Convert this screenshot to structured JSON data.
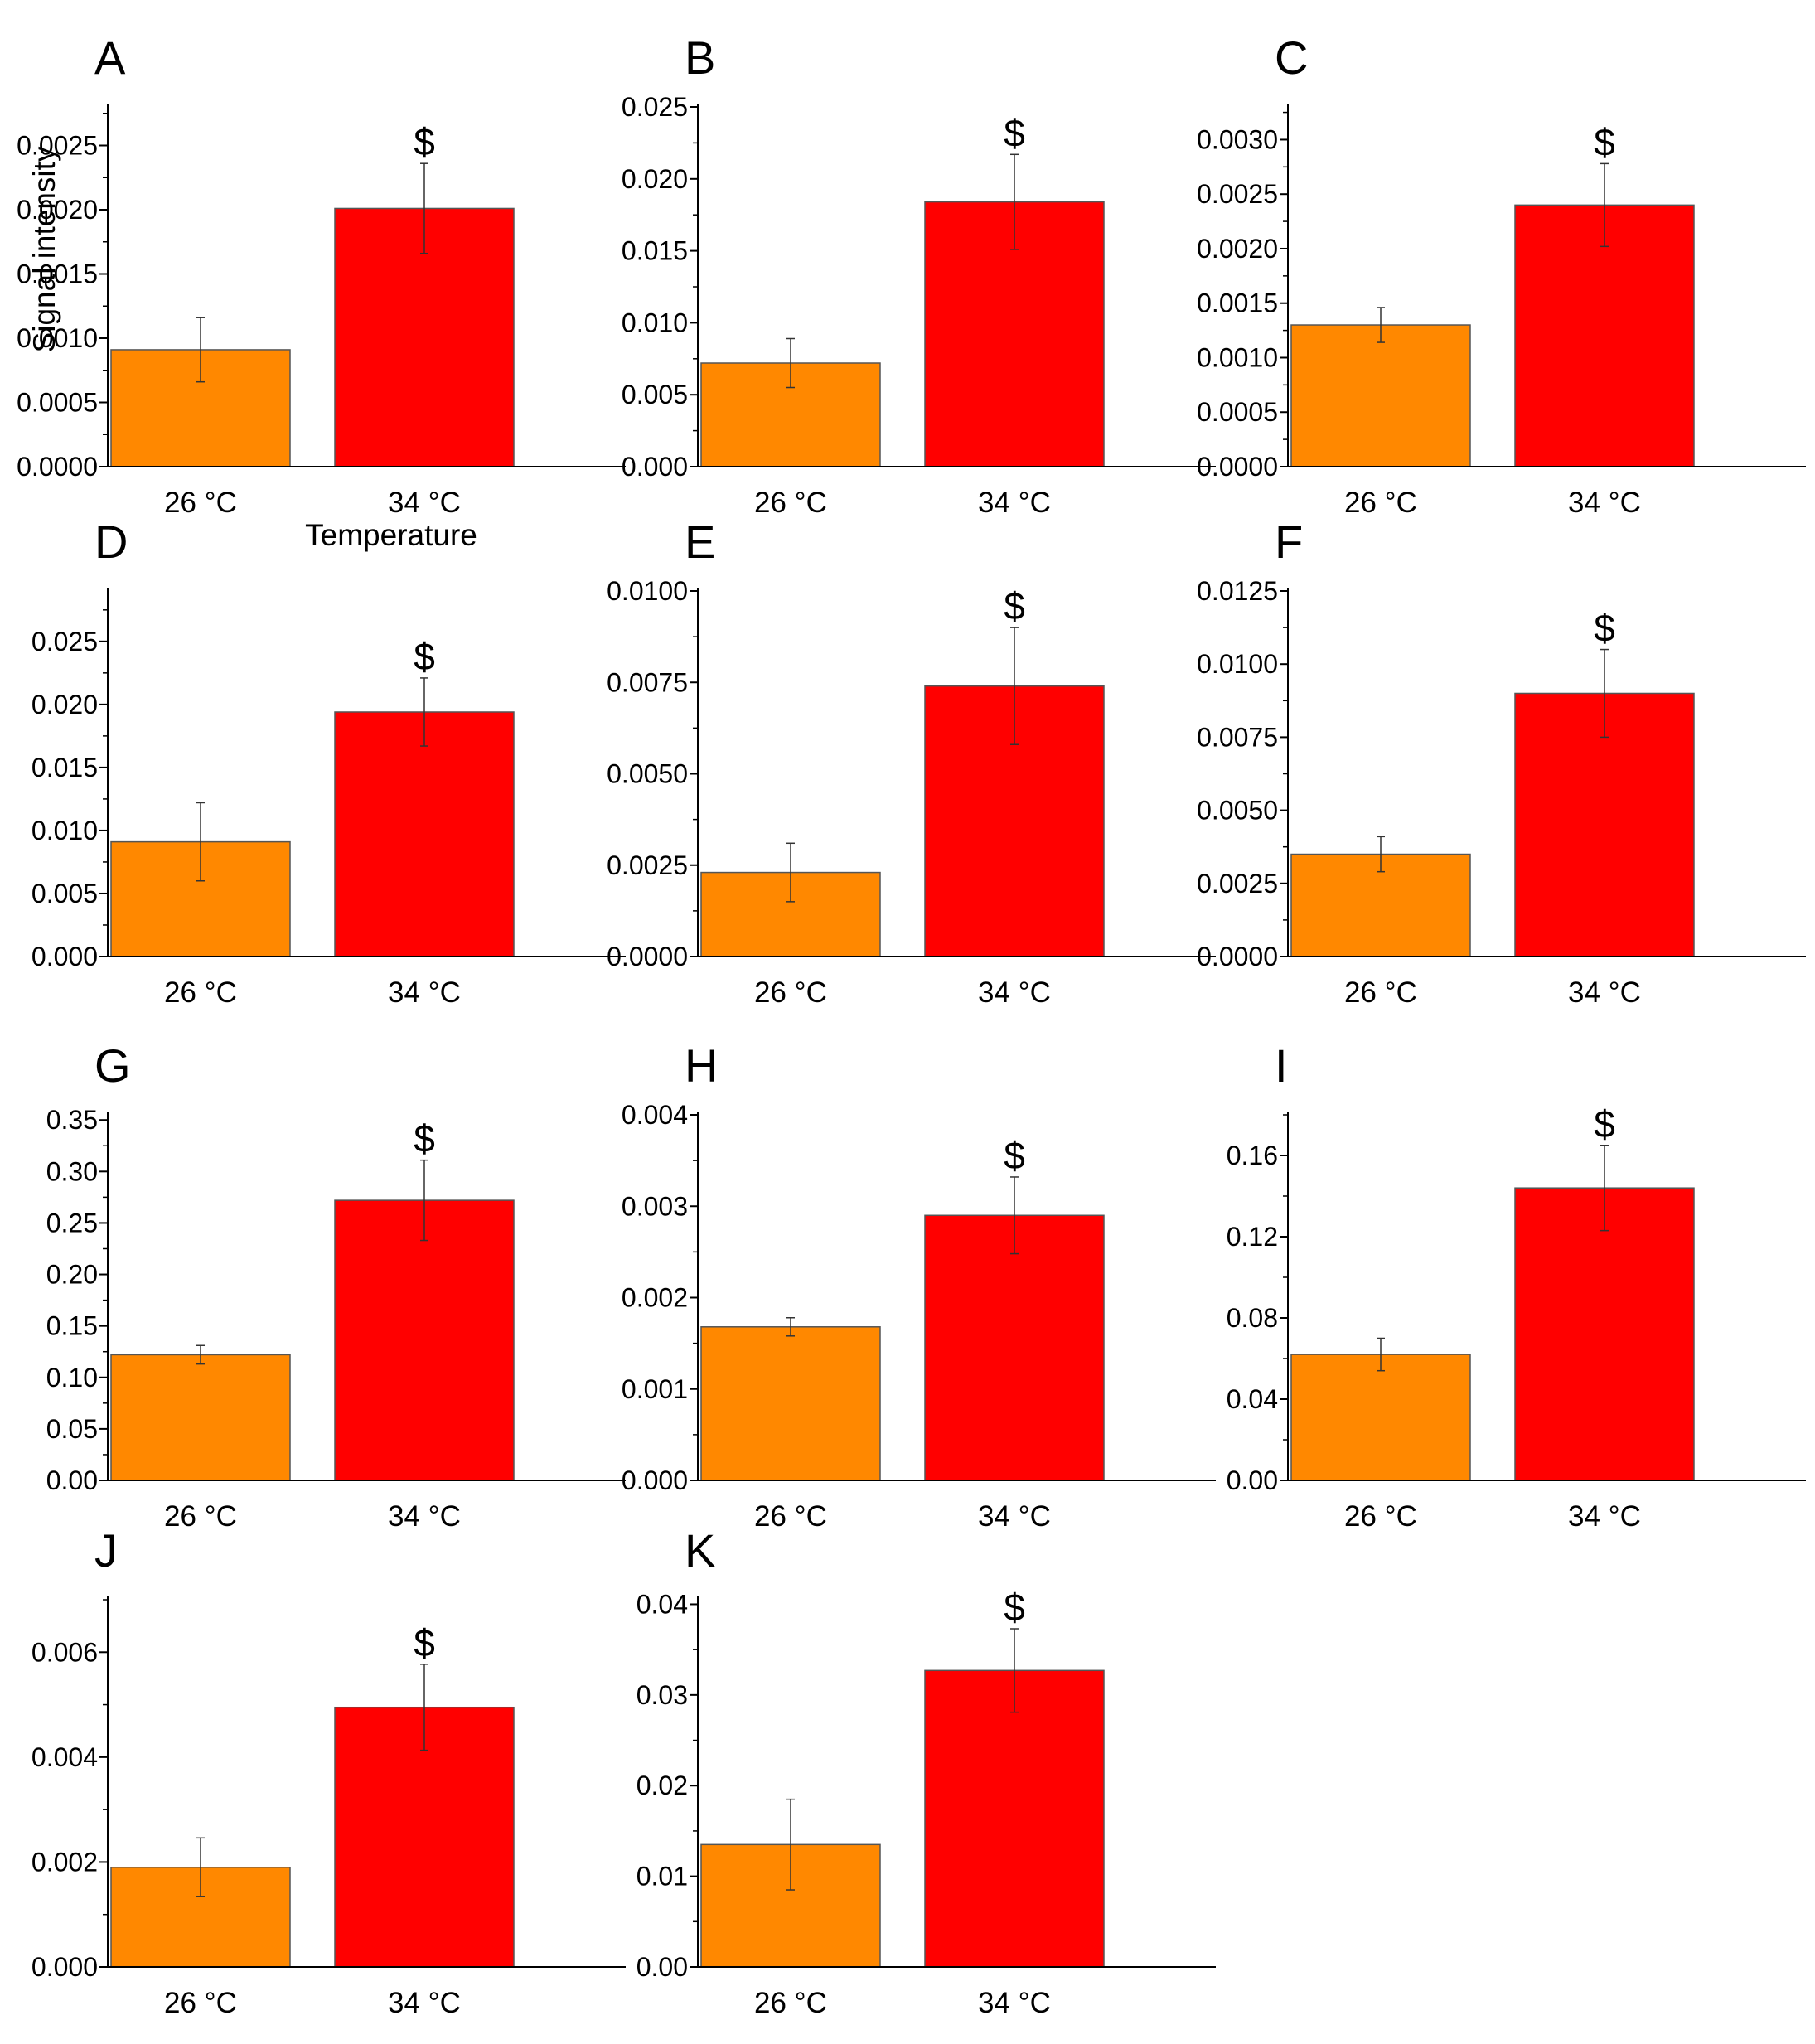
{
  "colors": {
    "c26": "#ff8800",
    "c34": "#ff0000",
    "axis": "#000000",
    "errorbar": "#333333"
  },
  "chart_data": [
    {
      "panel": "A",
      "type": "bar",
      "categories": [
        "26 °C",
        "34 °C"
      ],
      "values": [
        0.00091,
        0.00201
      ],
      "errors": [
        0.00025,
        0.00035
      ],
      "significance": [
        "",
        "$"
      ],
      "ylim": [
        0,
        0.0028
      ],
      "yticks": [
        "0.0000",
        "0.0005",
        "0.0010",
        "0.0015",
        "0.0020",
        "0.0025"
      ],
      "ylabel": "Signal intensity",
      "xlabel": "Temperature"
    },
    {
      "panel": "B",
      "type": "bar",
      "categories": [
        "26 °C",
        "34 °C"
      ],
      "values": [
        0.0072,
        0.0184
      ],
      "errors": [
        0.0017,
        0.0033
      ],
      "significance": [
        "",
        "$"
      ],
      "ylim": [
        0,
        0.025
      ],
      "yticks": [
        "0.000",
        "0.005",
        "0.010",
        "0.015",
        "0.020",
        "0.025"
      ],
      "ylabel": "",
      "xlabel": ""
    },
    {
      "panel": "C",
      "type": "bar",
      "categories": [
        "26 °C",
        "34 °C"
      ],
      "values": [
        0.0013,
        0.0024
      ],
      "errors": [
        0.00016,
        0.00038
      ],
      "significance": [
        "",
        "$"
      ],
      "ylim": [
        0,
        0.0033
      ],
      "yticks": [
        "0.0000",
        "0.0005",
        "0.0010",
        "0.0015",
        "0.0020",
        "0.0025",
        "0.0030"
      ],
      "ylabel": "",
      "xlabel": ""
    },
    {
      "panel": "D",
      "type": "bar",
      "categories": [
        "26 °C",
        "34 °C"
      ],
      "values": [
        0.0091,
        0.0194
      ],
      "errors": [
        0.0031,
        0.0027
      ],
      "significance": [
        "",
        "$"
      ],
      "ylim": [
        0,
        0.029
      ],
      "yticks": [
        "0.000",
        "0.005",
        "0.010",
        "0.015",
        "0.020",
        "0.025"
      ],
      "ylabel": "",
      "xlabel": ""
    },
    {
      "panel": "E",
      "type": "bar",
      "categories": [
        "26 °C",
        "34 °C"
      ],
      "values": [
        0.0023,
        0.0074
      ],
      "errors": [
        0.0008,
        0.0016
      ],
      "significance": [
        "",
        "$"
      ],
      "ylim": [
        0,
        0.01
      ],
      "yticks": [
        "0.0000",
        "0.0025",
        "0.0050",
        "0.0075",
        "0.0100"
      ],
      "ylabel": "",
      "xlabel": ""
    },
    {
      "panel": "F",
      "type": "bar",
      "categories": [
        "26 °C",
        "34 °C"
      ],
      "values": [
        0.0035,
        0.009
      ],
      "errors": [
        0.0006,
        0.0015
      ],
      "significance": [
        "",
        "$"
      ],
      "ylim": [
        0,
        0.0125
      ],
      "yticks": [
        "0.0000",
        "0.0025",
        "0.0050",
        "0.0075",
        "0.0100",
        "0.0125"
      ],
      "ylabel": "",
      "xlabel": ""
    },
    {
      "panel": "G",
      "type": "bar",
      "categories": [
        "26 °C",
        "34 °C"
      ],
      "values": [
        0.122,
        0.272
      ],
      "errors": [
        0.009,
        0.039
      ],
      "significance": [
        "",
        "$"
      ],
      "ylim": [
        0,
        0.355
      ],
      "yticks": [
        "0.00",
        "0.05",
        "0.10",
        "0.15",
        "0.20",
        "0.25",
        "0.30",
        "0.35"
      ],
      "ylabel": "",
      "xlabel": ""
    },
    {
      "panel": "H",
      "type": "bar",
      "categories": [
        "26 °C",
        "34 °C"
      ],
      "values": [
        0.00168,
        0.0029
      ],
      "errors": [
        0.0001,
        0.00042
      ],
      "significance": [
        "",
        "$"
      ],
      "ylim": [
        0,
        0.004
      ],
      "yticks": [
        "0.000",
        "0.001",
        "0.002",
        "0.003",
        "0.004"
      ],
      "ylabel": "",
      "xlabel": ""
    },
    {
      "panel": "I",
      "type": "bar",
      "categories": [
        "26 °C",
        "34 °C"
      ],
      "values": [
        0.062,
        0.144
      ],
      "errors": [
        0.008,
        0.021
      ],
      "significance": [
        "",
        "$"
      ],
      "ylim": [
        0,
        0.18
      ],
      "yticks": [
        "0.00",
        "0.04",
        "0.08",
        "0.12",
        "0.16"
      ],
      "ylabel": "",
      "xlabel": ""
    },
    {
      "panel": "J",
      "type": "bar",
      "categories": [
        "26 °C",
        "34 °C"
      ],
      "values": [
        0.0019,
        0.00495
      ],
      "errors": [
        0.00056,
        0.00082
      ],
      "significance": [
        "",
        "$"
      ],
      "ylim": [
        0,
        0.007
      ],
      "yticks": [
        "0.000",
        "0.002",
        "0.004",
        "0.006"
      ],
      "ylabel": "",
      "xlabel": ""
    },
    {
      "panel": "K",
      "type": "bar",
      "categories": [
        "26 °C",
        "34 °C"
      ],
      "values": [
        0.0135,
        0.0327
      ],
      "errors": [
        0.005,
        0.0046
      ],
      "significance": [
        "",
        "$"
      ],
      "ylim": [
        0,
        0.0405
      ],
      "yticks": [
        "0.00",
        "0.01",
        "0.02",
        "0.03",
        "0.04"
      ],
      "ylabel": "",
      "xlabel": ""
    }
  ]
}
